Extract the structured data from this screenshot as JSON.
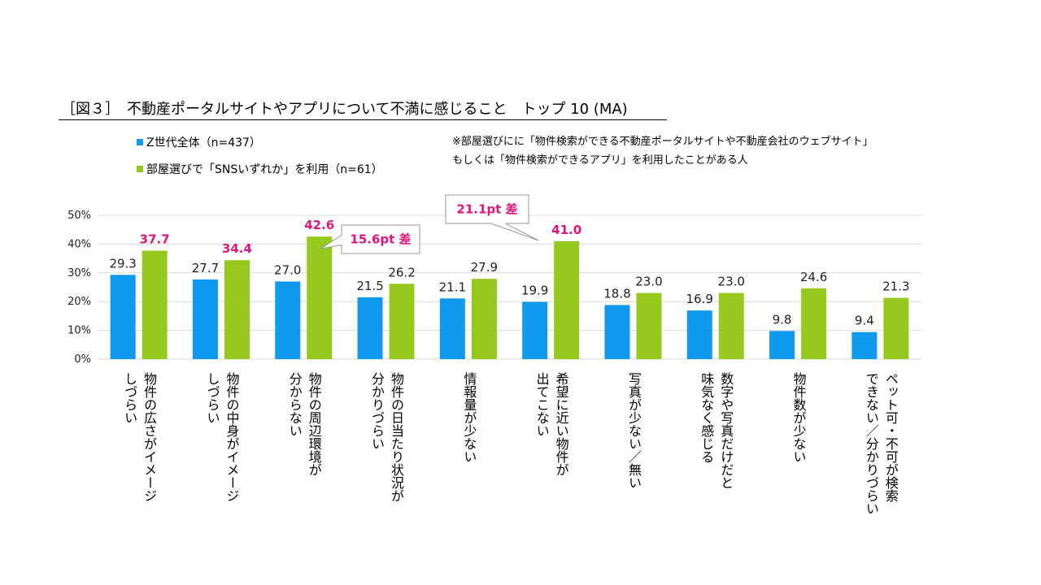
{
  "title": "［図３］　不動産ポータルサイトやアプリについて不満に感じること　トップ 10 (MA)",
  "note": [
    "※部屋選びにに「物件検索ができる不動産ポータルサイトや不動産会社のウェブサイト」",
    "もしくは「物件検索ができるアプリ」を利用したことがある人"
  ],
  "colors": {
    "series1": "#0f9aee",
    "series2": "#96c81e",
    "highlight": "#e0157b",
    "grid": "#d9d9d9"
  },
  "chart_data": {
    "type": "bar",
    "categories": [
      [
        "物件の広さがイメージ",
        "しづらい"
      ],
      [
        "物件の中身がイメージ",
        "しづらい"
      ],
      [
        "物件の周辺環境が",
        "分からない"
      ],
      [
        "物件の日当たり状況が",
        "分かりづらい"
      ],
      [
        "情報量が少ない"
      ],
      [
        "希望に近い物件が",
        "出てこない"
      ],
      [
        "写真が少ない／無い"
      ],
      [
        "数字や写真だけだと",
        "味気なく感じる"
      ],
      [
        "物件数が少ない"
      ],
      [
        "ペット可・不可が検索",
        "できない／分かりづらい"
      ]
    ],
    "series": [
      {
        "name": "Z世代全体（n=437）",
        "values": [
          29.3,
          27.7,
          27.0,
          21.5,
          21.1,
          19.9,
          18.8,
          16.9,
          9.8,
          9.4
        ]
      },
      {
        "name": "部屋選びで「SNSいずれか」を利用（n=61）",
        "values": [
          37.7,
          34.4,
          42.6,
          26.2,
          27.9,
          41.0,
          23.0,
          23.0,
          24.6,
          21.3
        ]
      }
    ],
    "highlight_series2": [
      0,
      1,
      2,
      5
    ],
    "y_ticks": [
      "0%",
      "10%",
      "20%",
      "30%",
      "40%",
      "50%"
    ],
    "ylim": [
      0,
      50
    ],
    "grid": true,
    "legend_position": "top-left",
    "callouts": [
      {
        "text": "15.6pt 差",
        "category": 2
      },
      {
        "text": "21.1pt 差",
        "category": 5
      }
    ]
  }
}
